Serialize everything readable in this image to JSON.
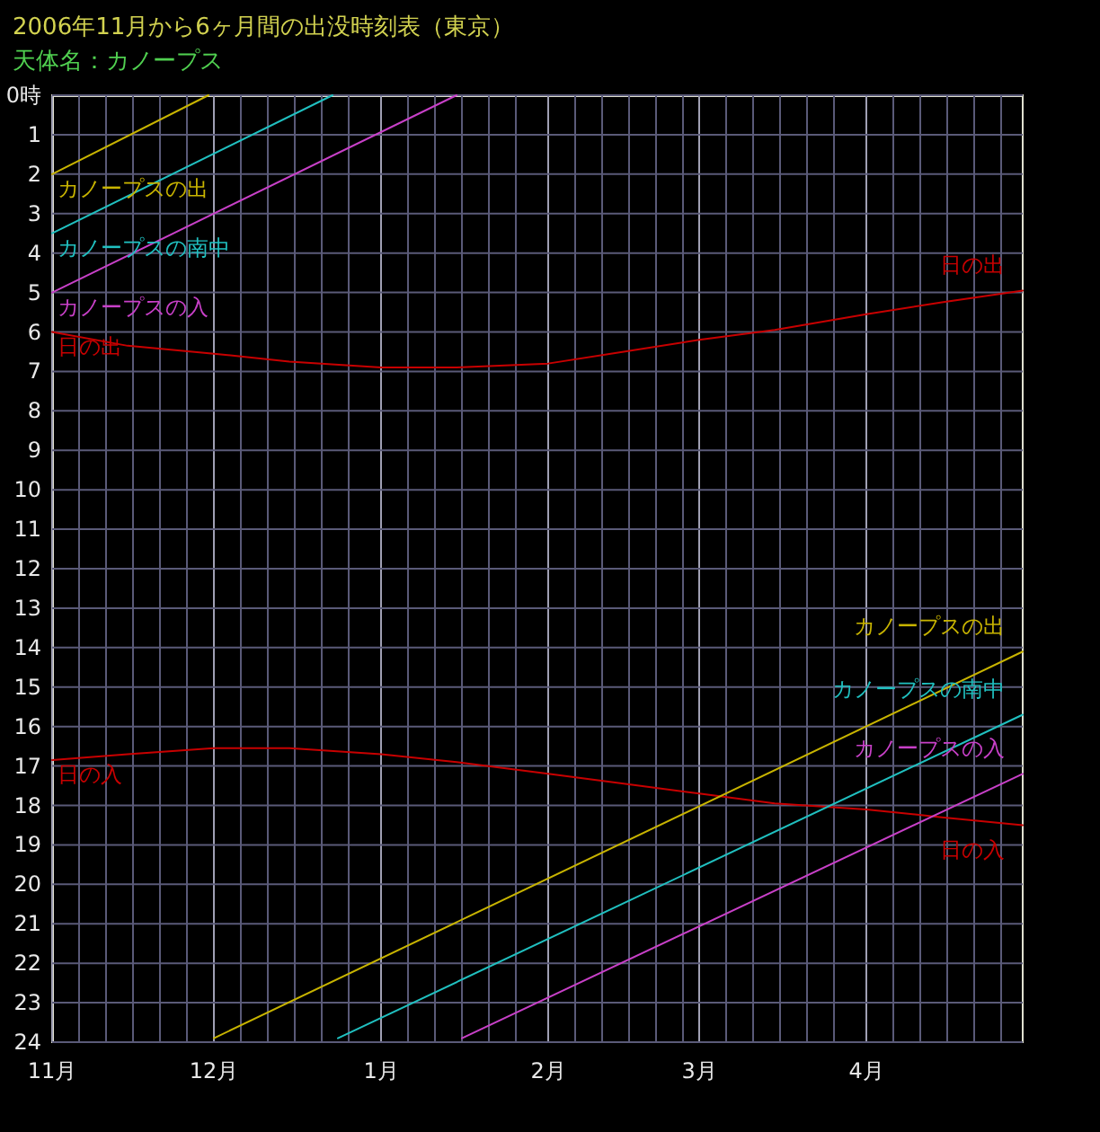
{
  "chart_data": {
    "type": "line",
    "title": "2006年11月から6ヶ月間の出没時刻表（東京）",
    "subtitle": "天体名：カノープス",
    "xlim": [
      "2006-11-01",
      "2007-04-30"
    ],
    "xticks": [
      {
        "value": "2006-11-01",
        "label": "11月"
      },
      {
        "value": "2006-11-06",
        "label": null
      },
      {
        "value": "2006-11-11",
        "label": null
      },
      {
        "value": "2006-11-16",
        "label": null
      },
      {
        "value": "2006-11-21",
        "label": null
      },
      {
        "value": "2006-11-26",
        "label": null
      },
      {
        "value": "2006-12-01",
        "label": "12月"
      },
      {
        "value": "2006-12-06",
        "label": null
      },
      {
        "value": "2006-12-11",
        "label": null
      },
      {
        "value": "2006-12-16",
        "label": null
      },
      {
        "value": "2006-12-21",
        "label": null
      },
      {
        "value": "2006-12-26",
        "label": null
      },
      {
        "value": "2007-01-01",
        "label": "1月"
      },
      {
        "value": "2007-01-06",
        "label": null
      },
      {
        "value": "2007-01-11",
        "label": null
      },
      {
        "value": "2007-01-16",
        "label": null
      },
      {
        "value": "2007-01-21",
        "label": null
      },
      {
        "value": "2007-01-26",
        "label": null
      },
      {
        "value": "2007-02-01",
        "label": "2月"
      },
      {
        "value": "2007-02-06",
        "label": null
      },
      {
        "value": "2007-02-11",
        "label": null
      },
      {
        "value": "2007-02-16",
        "label": null
      },
      {
        "value": "2007-02-21",
        "label": null
      },
      {
        "value": "2007-02-26",
        "label": null
      },
      {
        "value": "2007-03-01",
        "label": "3月"
      },
      {
        "value": "2007-03-06",
        "label": null
      },
      {
        "value": "2007-03-11",
        "label": null
      },
      {
        "value": "2007-03-16",
        "label": null
      },
      {
        "value": "2007-03-21",
        "label": null
      },
      {
        "value": "2007-03-26",
        "label": null
      },
      {
        "value": "2007-04-01",
        "label": "4月"
      },
      {
        "value": "2007-04-06",
        "label": null
      },
      {
        "value": "2007-04-11",
        "label": null
      },
      {
        "value": "2007-04-16",
        "label": null
      },
      {
        "value": "2007-04-21",
        "label": null
      },
      {
        "value": "2007-04-26",
        "label": null
      }
    ],
    "ylim": [
      24,
      0
    ],
    "yticks": [
      {
        "value": 0,
        "label": "0時"
      },
      1,
      2,
      3,
      4,
      5,
      6,
      7,
      8,
      9,
      10,
      11,
      12,
      13,
      14,
      15,
      16,
      17,
      18,
      19,
      20,
      21,
      22,
      23,
      24
    ],
    "grid": true,
    "legend": false,
    "marker": "none",
    "line_style": "solid",
    "series": [
      {
        "name": "カノープスの出",
        "color": "#c8b400",
        "x": [
          "2006-11-01",
          "2006-11-30"
        ],
        "values": [
          2.0,
          0.0
        ]
      },
      {
        "name": "カノープスの南中",
        "color": "#20c0c0",
        "x": [
          "2006-11-01",
          "2006-12-23"
        ],
        "values": [
          3.5,
          0.0
        ]
      },
      {
        "name": "カノープスの入",
        "color": "#c840c8",
        "x": [
          "2006-11-01",
          "2007-01-15"
        ],
        "values": [
          5.0,
          0.0
        ]
      },
      {
        "name": "日の出",
        "color": "#c80000",
        "x": [
          "2006-11-01",
          "2006-11-15",
          "2006-12-01",
          "2006-12-15",
          "2007-01-01",
          "2007-01-15",
          "2007-02-01",
          "2007-02-15",
          "2007-03-01",
          "2007-03-15",
          "2007-04-01",
          "2007-04-15",
          "2007-04-30"
        ],
        "values": [
          6.0,
          6.35,
          6.55,
          6.75,
          6.9,
          6.9,
          6.8,
          6.5,
          6.2,
          5.95,
          5.55,
          5.25,
          4.95
        ]
      },
      {
        "name": "日の入",
        "color": "#c80000",
        "x": [
          "2006-11-01",
          "2006-11-15",
          "2006-12-01",
          "2006-12-15",
          "2007-01-01",
          "2007-01-15",
          "2007-02-01",
          "2007-02-15",
          "2007-03-01",
          "2007-03-15",
          "2007-04-01",
          "2007-04-15",
          "2007-04-30"
        ],
        "values": [
          16.85,
          16.7,
          16.55,
          16.55,
          16.7,
          16.9,
          17.2,
          17.45,
          17.7,
          17.95,
          18.1,
          18.3,
          18.5
        ]
      },
      {
        "name": "カノープスの出",
        "color": "#c8b400",
        "x": [
          "2006-12-01",
          "2007-04-30"
        ],
        "values": [
          23.9,
          14.1
        ]
      },
      {
        "name": "カノープスの南中",
        "color": "#20c0c0",
        "x": [
          "2006-12-24",
          "2007-04-30"
        ],
        "values": [
          23.9,
          15.7
        ]
      },
      {
        "name": "カノープスの入",
        "color": "#c840c8",
        "x": [
          "2007-01-16",
          "2007-04-30"
        ],
        "values": [
          23.9,
          17.2
        ]
      }
    ]
  }
}
